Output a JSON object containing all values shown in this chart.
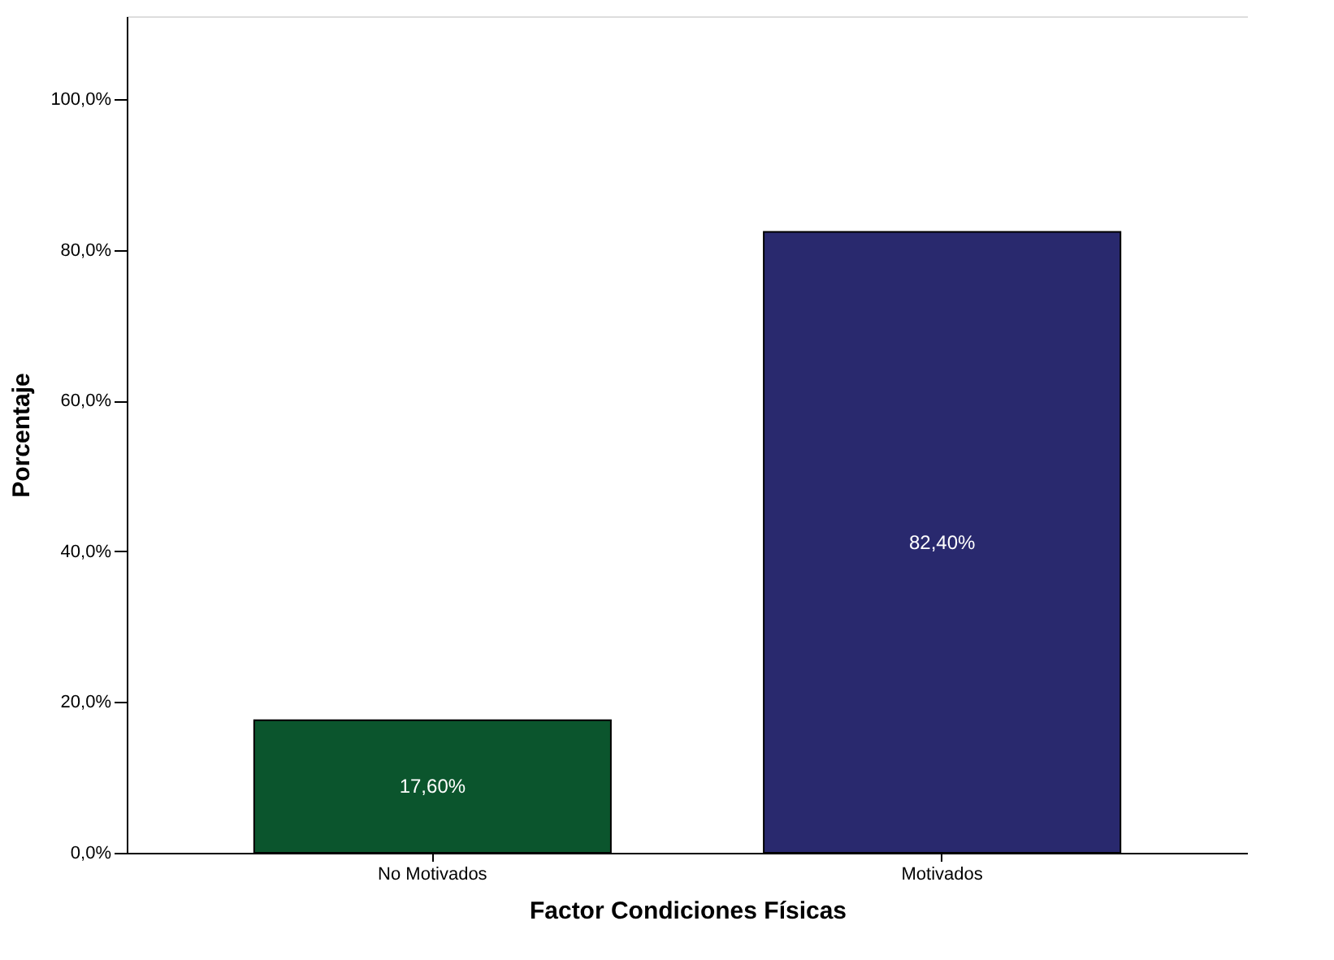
{
  "chart_data": {
    "type": "bar",
    "xlabel": "Factor Condiciones Físicas",
    "ylabel": "Porcentaje",
    "categories": [
      "No Motivados",
      "Motivados"
    ],
    "values": [
      17.6,
      82.4
    ],
    "colors": [
      "#0b552d",
      "#29296e"
    ],
    "value_labels": [
      "17,60%",
      "82,40%"
    ],
    "ylim": [
      0,
      111
    ],
    "yticks": [
      {
        "value": 0,
        "label": "0,0%"
      },
      {
        "value": 20,
        "label": "20,0%"
      },
      {
        "value": 40,
        "label": "40,0%"
      },
      {
        "value": 60,
        "label": "60,0%"
      },
      {
        "value": 80,
        "label": "80,0%"
      },
      {
        "value": 100,
        "label": "100,0%"
      }
    ],
    "grid": false
  }
}
